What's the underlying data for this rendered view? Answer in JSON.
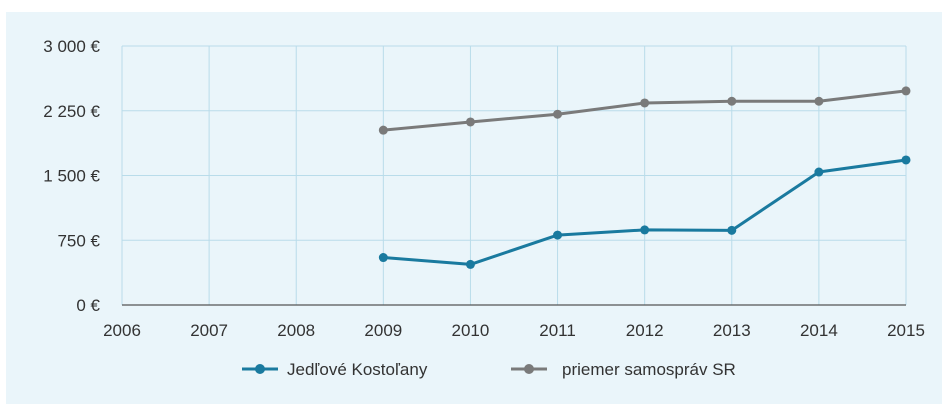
{
  "chart_data": {
    "type": "line",
    "title": "",
    "xlabel": "",
    "ylabel": "",
    "x": [
      "2006",
      "2007",
      "2008",
      "2009",
      "2010",
      "2011",
      "2012",
      "2013",
      "2014",
      "2015"
    ],
    "ylim": [
      0,
      3000
    ],
    "yticks": [
      0,
      750,
      1500,
      2250,
      3000
    ],
    "ytick_labels": [
      "0 €",
      "750 €",
      "1 500 €",
      "2 250 €",
      "3 000 €"
    ],
    "grid": true,
    "legend_position": "bottom",
    "series": [
      {
        "name": "Jedľové Kostoľany",
        "color": "#1a7a9f",
        "values": [
          null,
          null,
          null,
          550,
          470,
          810,
          870,
          865,
          1540,
          1680
        ]
      },
      {
        "name": "priemer samospráv SR",
        "color": "#7a7a7a",
        "values": [
          null,
          null,
          null,
          2025,
          2120,
          2210,
          2340,
          2360,
          2360,
          2480
        ]
      }
    ]
  }
}
